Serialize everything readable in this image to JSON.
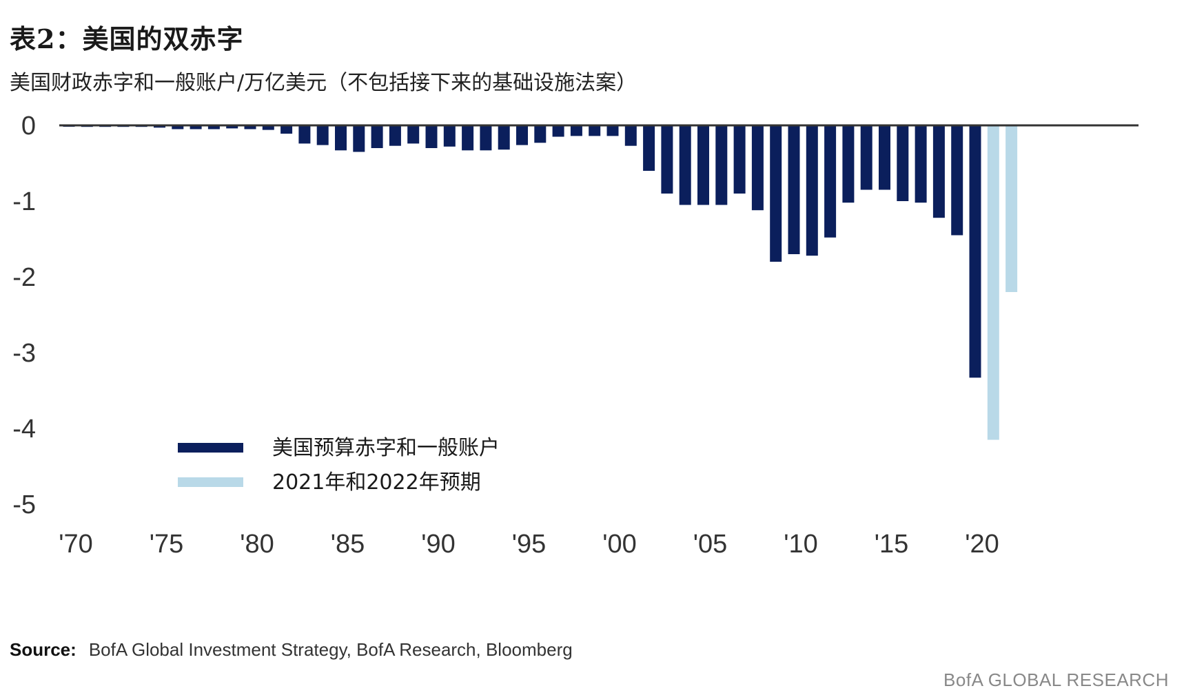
{
  "header": {
    "title": "表2：美国的双赤字",
    "subtitle": "美国财政赤字和一般账户/万亿美元（不包括接下来的基础设施法案）"
  },
  "footer": {
    "source_label": "Source:",
    "source_text": "BofA Global Investment Strategy, BofA Research, Bloomberg",
    "brand": "BofA GLOBAL RESEARCH"
  },
  "colors": {
    "actual": "#0b1f5c",
    "forecast": "#b9d9e8",
    "axis": "#333333"
  },
  "chart_data": {
    "type": "bar",
    "title": "表2：美国的双赤字",
    "subtitle": "美国财政赤字和一般账户/万亿美元（不包括接下来的基础设施法案）",
    "ylim": [
      -5,
      0
    ],
    "yticks": [
      0,
      -1,
      -2,
      -3,
      -4,
      -5
    ],
    "ytick_labels": [
      "0",
      "-1",
      "-2",
      "-3",
      "-4",
      "-5"
    ],
    "xtick_labels": [
      "'70",
      "'75",
      "'80",
      "'85",
      "'90",
      "'95",
      "'00",
      "'05",
      "'10",
      "'15",
      "'20"
    ],
    "xticks": [
      1970,
      1975,
      1980,
      1985,
      1990,
      1995,
      2000,
      2005,
      2010,
      2015,
      2020
    ],
    "legend_position": "lower-left",
    "series": [
      {
        "name": "美国预算赤字和一般账户",
        "color": "#0b1f5c",
        "x": [
          1970,
          1971,
          1972,
          1973,
          1974,
          1975,
          1976,
          1977,
          1978,
          1979,
          1980,
          1981,
          1982,
          1983,
          1984,
          1985,
          1986,
          1987,
          1988,
          1989,
          1990,
          1991,
          1992,
          1993,
          1994,
          1995,
          1996,
          1997,
          1998,
          1999,
          2000,
          2001,
          2002,
          2003,
          2004,
          2005,
          2006,
          2007,
          2008,
          2009,
          2010,
          2011,
          2012,
          2013,
          2014,
          2015,
          2016,
          2017,
          2018,
          2019,
          2020
        ],
        "values": [
          -0.01,
          -0.02,
          -0.02,
          -0.02,
          -0.02,
          -0.03,
          -0.05,
          -0.05,
          -0.05,
          -0.04,
          -0.05,
          -0.06,
          -0.11,
          -0.24,
          -0.26,
          -0.33,
          -0.35,
          -0.3,
          -0.27,
          -0.24,
          -0.3,
          -0.28,
          -0.33,
          -0.33,
          -0.32,
          -0.26,
          -0.23,
          -0.15,
          -0.14,
          -0.14,
          -0.14,
          -0.27,
          -0.6,
          -0.9,
          -1.05,
          -1.05,
          -1.05,
          -0.9,
          -1.12,
          -1.8,
          -1.7,
          -1.72,
          -1.48,
          -1.02,
          -0.85,
          -0.85,
          -1.0,
          -1.02,
          -1.22,
          -1.45,
          -3.33
        ]
      },
      {
        "name": "2021年和2022年预期",
        "color": "#b9d9e8",
        "x": [
          2021,
          2022
        ],
        "values": [
          -4.15,
          -2.2
        ]
      }
    ]
  }
}
